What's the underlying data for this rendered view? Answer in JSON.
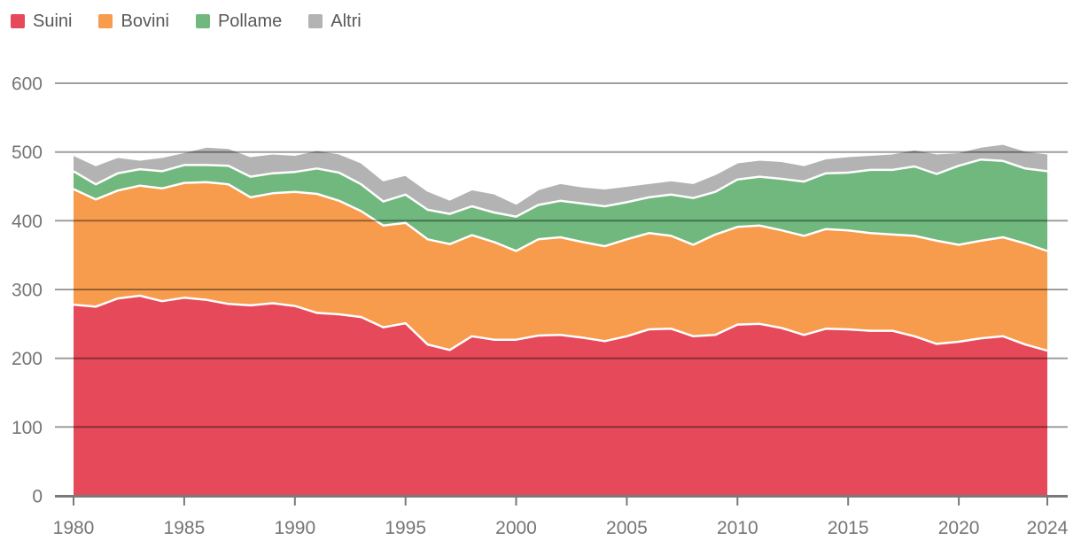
{
  "legend": {
    "items": [
      "Suini",
      "Bovini",
      "Pollame",
      "Altri"
    ]
  },
  "colors": {
    "suini": "#e5495a",
    "bovini": "#f79b4d",
    "pollame": "#70b87e",
    "altri": "#b3b3b3",
    "axis_label": "#757575",
    "legend_text": "#595959",
    "gridline": "rgba(0,0,0,0.38)",
    "axis_line": "#7a7a7a",
    "band_stroke": "#ffffff"
  },
  "chart_data": {
    "type": "area",
    "stacked": true,
    "title": "",
    "xlabel": "",
    "ylabel": "",
    "grid": true,
    "legend_position": "top-left",
    "ylim": [
      0,
      600
    ],
    "yticks": [
      0,
      100,
      200,
      300,
      400,
      500,
      600
    ],
    "xticks": [
      1980,
      1985,
      1990,
      1995,
      2000,
      2005,
      2010,
      2015,
      2020,
      2024
    ],
    "x": [
      1980,
      1981,
      1982,
      1983,
      1984,
      1985,
      1986,
      1987,
      1988,
      1989,
      1990,
      1991,
      1992,
      1993,
      1994,
      1995,
      1996,
      1997,
      1998,
      1999,
      2000,
      2001,
      2002,
      2003,
      2004,
      2005,
      2006,
      2007,
      2008,
      2009,
      2010,
      2011,
      2012,
      2013,
      2014,
      2015,
      2016,
      2017,
      2018,
      2019,
      2020,
      2021,
      2022,
      2023,
      2024
    ],
    "series": [
      {
        "name": "Suini",
        "color": "#e5495a",
        "values": [
          278,
          275,
          287,
          291,
          283,
          288,
          285,
          279,
          277,
          280,
          276,
          266,
          264,
          260,
          245,
          251,
          220,
          212,
          232,
          227,
          227,
          233,
          234,
          230,
          225,
          232,
          242,
          243,
          232,
          234,
          249,
          250,
          244,
          234,
          243,
          242,
          240,
          240,
          232,
          221,
          224,
          229,
          232,
          220,
          211
        ]
      },
      {
        "name": "Bovini",
        "color": "#f79b4d",
        "values": [
          168,
          156,
          157,
          160,
          164,
          167,
          171,
          174,
          157,
          160,
          166,
          173,
          165,
          154,
          148,
          146,
          153,
          154,
          147,
          142,
          129,
          140,
          142,
          139,
          138,
          141,
          140,
          135,
          133,
          146,
          142,
          143,
          142,
          144,
          145,
          144,
          142,
          140,
          146,
          150,
          141,
          142,
          144,
          147,
          145
        ]
      },
      {
        "name": "Pollame",
        "color": "#70b87e",
        "values": [
          26,
          22,
          25,
          24,
          25,
          26,
          25,
          27,
          30,
          29,
          29,
          37,
          41,
          39,
          35,
          41,
          43,
          44,
          42,
          43,
          50,
          50,
          53,
          56,
          58,
          54,
          52,
          60,
          68,
          62,
          69,
          71,
          75,
          79,
          81,
          84,
          92,
          94,
          101,
          97,
          115,
          118,
          111,
          109,
          116
        ]
      },
      {
        "name": "Altri",
        "color": "#b3b3b3",
        "values": [
          24,
          28,
          24,
          14,
          21,
          19,
          27,
          26,
          30,
          29,
          25,
          27,
          28,
          32,
          31,
          29,
          28,
          21,
          25,
          28,
          19,
          23,
          26,
          25,
          26,
          24,
          21,
          21,
          22,
          26,
          25,
          25,
          26,
          24,
          22,
          24,
          22,
          24,
          25,
          30,
          20,
          19,
          25,
          26,
          26
        ]
      }
    ]
  }
}
